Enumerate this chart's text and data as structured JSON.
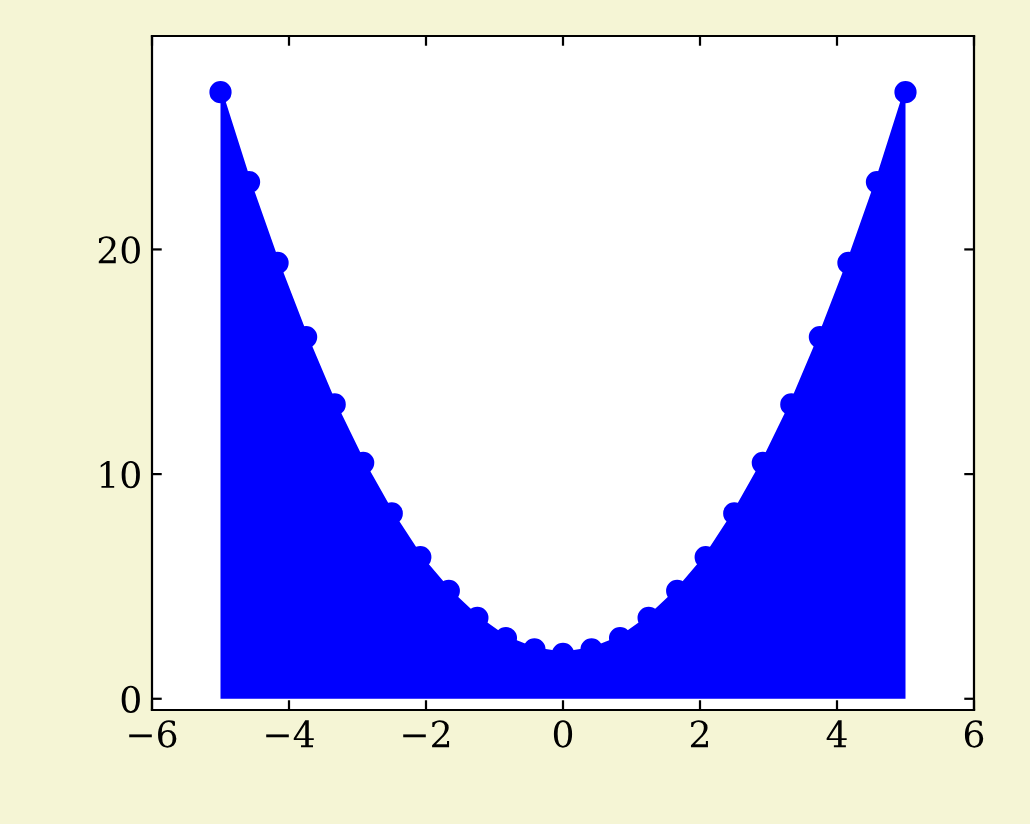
{
  "chart_data": {
    "type": "area",
    "x": [
      -5,
      -4.583,
      -4.167,
      -3.75,
      -3.333,
      -2.917,
      -2.5,
      -2.083,
      -1.667,
      -1.25,
      -0.833,
      -0.417,
      0,
      0.417,
      0.833,
      1.25,
      1.667,
      2.083,
      2.5,
      2.917,
      3.333,
      3.75,
      4.167,
      4.583,
      5
    ],
    "series": [
      {
        "color": "#0000ff",
        "values": [
          27,
          23.0,
          19.4,
          16.1,
          13.1,
          10.5,
          8.25,
          6.3,
          4.8,
          3.6,
          2.7,
          2.2,
          2,
          2.2,
          2.7,
          3.6,
          4.8,
          6.3,
          8.25,
          10.5,
          13.1,
          16.1,
          19.4,
          23.0,
          27
        ]
      }
    ],
    "marker": "circle",
    "grid": false,
    "xlim": [
      -6,
      6
    ],
    "xticks": [
      -6,
      -4,
      -2,
      0,
      2,
      4,
      6
    ],
    "ylim": [
      -0.5,
      29.5
    ],
    "yticks": [
      0,
      10,
      20
    ]
  }
}
